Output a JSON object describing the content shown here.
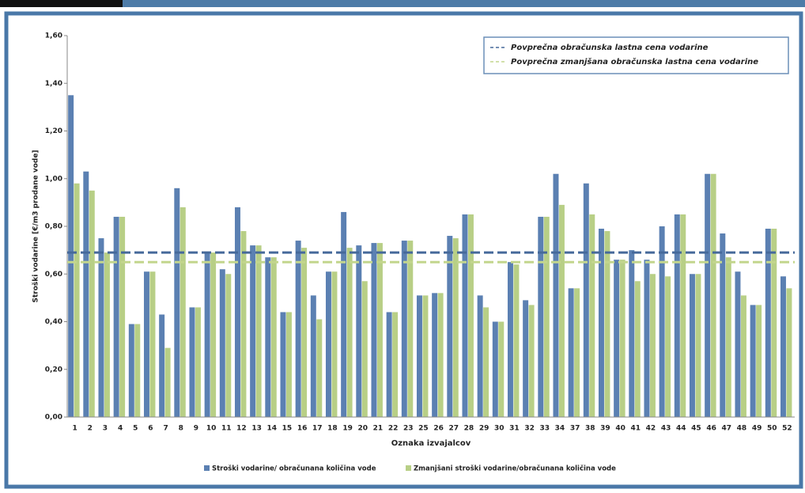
{
  "chart_data": {
    "type": "bar",
    "y_label": "Stroški vodarine [€/m3 prodane vode]",
    "x_label": "Oznaka izvajalcov",
    "categories": [
      "1",
      "2",
      "3",
      "4",
      "5",
      "6",
      "7",
      "8",
      "9",
      "10",
      "11",
      "12",
      "13",
      "14",
      "15",
      "16",
      "17",
      "18",
      "19",
      "20",
      "21",
      "22",
      "23",
      "25",
      "26",
      "27",
      "28",
      "29",
      "30",
      "31",
      "32",
      "33",
      "34",
      "37",
      "38",
      "39",
      "40",
      "41",
      "42",
      "43",
      "44",
      "45",
      "46",
      "47",
      "48",
      "49",
      "50",
      "52"
    ],
    "series": [
      {
        "name": "Stroški vodarine/ obračunana količina vode",
        "color": "#5b80b2",
        "values": [
          1.35,
          1.03,
          0.75,
          0.84,
          0.39,
          0.61,
          0.43,
          0.96,
          0.46,
          0.69,
          0.62,
          0.88,
          0.72,
          0.67,
          0.44,
          0.74,
          0.51,
          0.61,
          0.86,
          0.72,
          0.73,
          0.44,
          0.74,
          0.51,
          0.52,
          0.76,
          0.85,
          0.51,
          0.4,
          0.65,
          0.49,
          0.84,
          1.02,
          0.54,
          0.98,
          0.79,
          0.66,
          0.7,
          0.66,
          0.8,
          0.85,
          0.6,
          1.02,
          0.77,
          0.61,
          0.47,
          0.79,
          0.59
        ]
      },
      {
        "name": "Zmanjšani stroški vodarine/obračunana količina vode",
        "color": "#b8cf86",
        "values": [
          0.98,
          0.95,
          0.69,
          0.84,
          0.39,
          0.61,
          0.29,
          0.88,
          0.46,
          0.69,
          0.6,
          0.78,
          0.72,
          0.67,
          0.44,
          0.71,
          0.41,
          0.61,
          0.71,
          0.57,
          0.73,
          0.44,
          0.74,
          0.51,
          0.52,
          0.75,
          0.85,
          0.46,
          0.4,
          0.64,
          0.47,
          0.84,
          0.89,
          0.54,
          0.85,
          0.78,
          0.66,
          0.57,
          0.6,
          0.59,
          0.85,
          0.6,
          1.02,
          0.67,
          0.51,
          0.47,
          0.79,
          0.54
        ]
      }
    ],
    "reference_lines": [
      {
        "name": "Povprečna obračunska lastna cena vodarine",
        "value": 0.69,
        "color": "#46699a"
      },
      {
        "name": "Povprečna zmanjšana obračunska lastna cena vodarine",
        "value": 0.65,
        "color": "#c3d68d"
      }
    ],
    "ylim": [
      0,
      1.6
    ],
    "yticks": [
      {
        "value": 0,
        "label": "0,00"
      },
      {
        "value": 0.2,
        "label": "0,20"
      },
      {
        "value": 0.4,
        "label": "0,40"
      },
      {
        "value": 0.6,
        "label": "0,60"
      },
      {
        "value": 0.8,
        "label": "0,80"
      },
      {
        "value": 1.0,
        "label": "1,00"
      },
      {
        "value": 1.2,
        "label": "1,20"
      },
      {
        "value": 1.4,
        "label": "1,40"
      },
      {
        "value": 1.6,
        "label": "1,60"
      }
    ]
  }
}
